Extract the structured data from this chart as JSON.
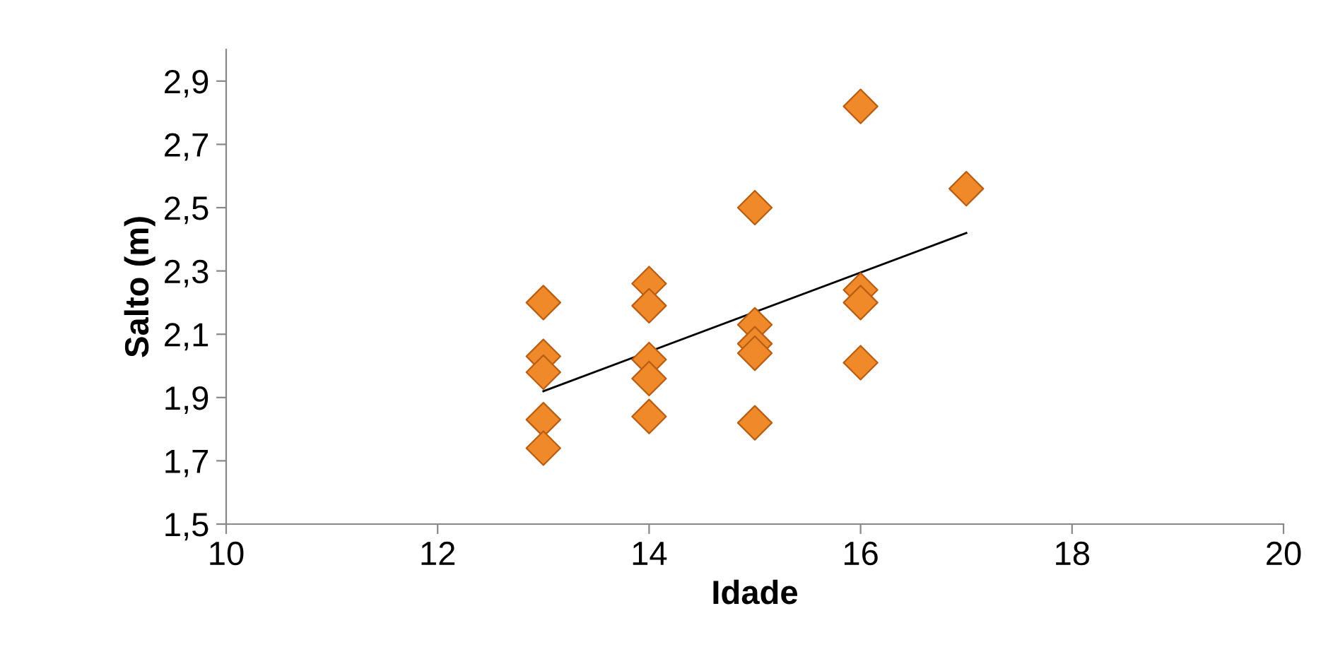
{
  "chart_data": {
    "type": "scatter",
    "xlabel": "Idade",
    "ylabel": "Salto (m)",
    "series": [
      {
        "color": "#f0892a",
        "marker": "diamond",
        "x": [
          13,
          13,
          13,
          13,
          13,
          14,
          14,
          14,
          14,
          14,
          15,
          15,
          15,
          15,
          15,
          16,
          16,
          16,
          16,
          17
        ],
        "values": [
          2.2,
          2.03,
          1.98,
          1.83,
          1.74,
          2.26,
          2.19,
          2.02,
          1.96,
          1.84,
          2.5,
          2.13,
          2.07,
          2.04,
          1.82,
          2.82,
          2.24,
          2.2,
          2.01,
          2.56
        ]
      },
      {
        "type": "line",
        "color": "#000000",
        "marker": "none",
        "x": [
          13,
          17
        ],
        "values": [
          1.92,
          2.42
        ]
      }
    ],
    "xlim": [
      10,
      20
    ],
    "xticks": [
      10,
      12,
      14,
      16,
      18,
      20
    ],
    "ylim": [
      1.5,
      3.0
    ],
    "yticks": [
      {
        "value": 1.5,
        "label": "1,5"
      },
      {
        "value": 1.7,
        "label": "1,7"
      },
      {
        "value": 1.9,
        "label": "1,9"
      },
      {
        "value": 2.1,
        "label": "2,1"
      },
      {
        "value": 2.3,
        "label": "2,3"
      },
      {
        "value": 2.5,
        "label": "2,5"
      },
      {
        "value": 2.7,
        "label": "2,7"
      },
      {
        "value": 2.9,
        "label": "2,9"
      }
    ],
    "grid": false,
    "legend": false
  }
}
